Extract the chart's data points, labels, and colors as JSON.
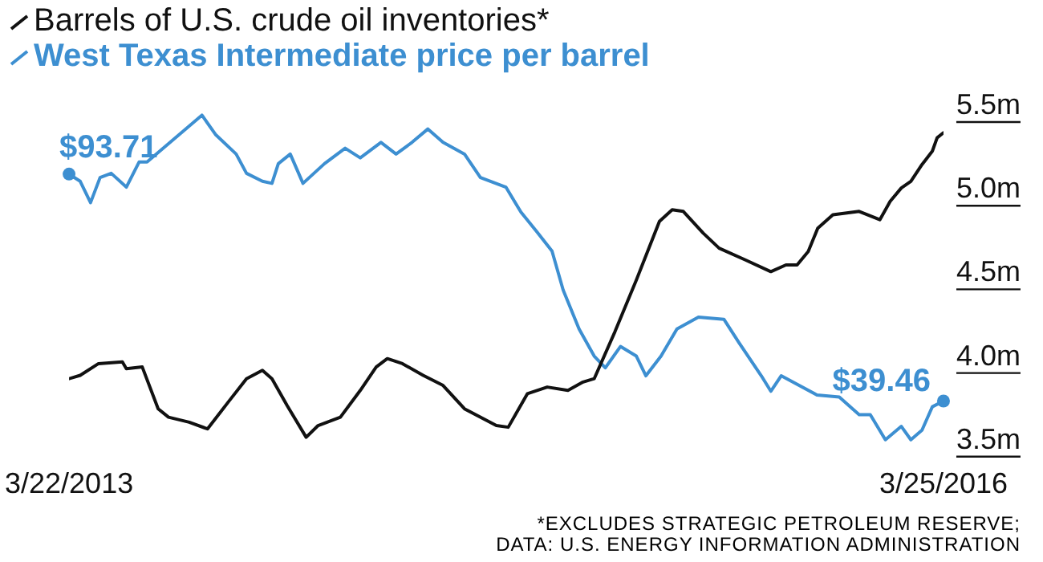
{
  "chart_data": {
    "type": "line",
    "xlim": [
      "2013-03-22",
      "2016-03-25"
    ],
    "xticks": [
      {
        "value": "2013-03-22",
        "label": "3/22/2013"
      },
      {
        "value": "2016-03-25",
        "label": "3/25/2016"
      }
    ],
    "ylim": [
      3.5,
      5.5
    ],
    "yticks": [
      {
        "value": 3.5,
        "label": "3.5m"
      },
      {
        "value": 4,
        "label": "4.0m"
      },
      {
        "value": 4.5,
        "label": "4.5m"
      },
      {
        "value": 5,
        "label": "5.0m"
      },
      {
        "value": 5.5,
        "label": "5.5m"
      }
    ],
    "grid": false,
    "legend": "top left",
    "marker": "none",
    "line_style": "solid",
    "series": [
      {
        "name": "Barrels of U.S. crude oil inventories*",
        "color": "#111111",
        "x": [
          "2013-03-22",
          "2013-04-05",
          "2013-04-28",
          "2013-05-28",
          "2013-06-02",
          "2013-06-22",
          "2013-07-12",
          "2013-07-25",
          "2013-08-20",
          "2013-09-12",
          "2013-10-08",
          "2013-10-31",
          "2013-11-20",
          "2013-12-02",
          "2013-12-21",
          "2014-01-14",
          "2014-01-29",
          "2014-02-26",
          "2014-03-23",
          "2014-04-12",
          "2014-04-26",
          "2014-05-15",
          "2014-06-10",
          "2014-07-05",
          "2014-08-01",
          "2014-09-10",
          "2014-09-25",
          "2014-10-19",
          "2014-11-13",
          "2014-12-09",
          "2014-12-28",
          "2015-01-11",
          "2015-02-06",
          "2015-03-05",
          "2015-04-03",
          "2015-04-19",
          "2015-05-03",
          "2015-05-28",
          "2015-06-17",
          "2015-07-20",
          "2015-08-21",
          "2015-09-09",
          "2015-09-23",
          "2015-10-07",
          "2015-10-19",
          "2015-11-07",
          "2015-12-10",
          "2016-01-05",
          "2016-01-18",
          "2016-02-01",
          "2016-02-13",
          "2016-02-27",
          "2016-03-11",
          "2016-03-17",
          "2016-03-25"
        ],
        "values": [
          3.87,
          3.89,
          3.96,
          3.97,
          3.93,
          3.94,
          3.69,
          3.64,
          3.61,
          3.57,
          3.73,
          3.87,
          3.92,
          3.87,
          3.71,
          3.52,
          3.59,
          3.64,
          3.8,
          3.94,
          3.99,
          3.96,
          3.89,
          3.83,
          3.69,
          3.59,
          3.58,
          3.78,
          3.82,
          3.8,
          3.85,
          3.87,
          4.15,
          4.46,
          4.81,
          4.88,
          4.87,
          4.74,
          4.65,
          4.58,
          4.51,
          4.55,
          4.55,
          4.63,
          4.77,
          4.85,
          4.87,
          4.82,
          4.93,
          5.01,
          5.05,
          5.15,
          5.23,
          5.31,
          5.34
        ]
      },
      {
        "name": "West Texas Intermediate price per barrel",
        "color": "#3d8fd1",
        "axis": "y2",
        "x": [
          "2013-03-22",
          "2013-04-05",
          "2013-04-18",
          "2013-04-30",
          "2013-05-14",
          "2013-06-02",
          "2013-06-18",
          "2013-06-28",
          "2013-09-05",
          "2013-09-22",
          "2013-10-18",
          "2013-10-31",
          "2013-11-20",
          "2013-12-02",
          "2013-12-10",
          "2013-12-25",
          "2014-01-10",
          "2014-02-06",
          "2014-03-04",
          "2014-03-23",
          "2014-04-18",
          "2014-05-07",
          "2014-05-27",
          "2014-06-16",
          "2014-07-05",
          "2014-08-01",
          "2014-08-21",
          "2014-09-22",
          "2014-10-11",
          "2014-10-31",
          "2014-11-19",
          "2014-12-03",
          "2014-12-23",
          "2015-01-11",
          "2015-01-25",
          "2015-02-13",
          "2015-03-05",
          "2015-03-17",
          "2015-04-05",
          "2015-04-25",
          "2015-05-22",
          "2015-06-23",
          "2015-07-12",
          "2015-08-09",
          "2015-08-21",
          "2015-09-03",
          "2015-10-18",
          "2015-11-15",
          "2015-12-10",
          "2015-12-24",
          "2016-01-12",
          "2016-02-01",
          "2016-02-13",
          "2016-02-27",
          "2016-03-11",
          "2016-03-25"
        ],
        "values": [
          93.71,
          92.0,
          86.9,
          92.9,
          93.9,
          90.6,
          96.6,
          96.6,
          107.8,
          103.2,
          98.5,
          93.9,
          92.0,
          91.5,
          96.2,
          98.5,
          91.5,
          96.2,
          99.9,
          97.6,
          101.3,
          98.5,
          101.3,
          104.5,
          101.3,
          98.5,
          92.9,
          90.6,
          84.6,
          79.9,
          75.3,
          66.0,
          56.7,
          50.2,
          47.4,
          52.5,
          50.2,
          45.5,
          50.2,
          56.7,
          59.5,
          59.0,
          53.4,
          45.5,
          41.8,
          45.5,
          40.9,
          40.4,
          36.2,
          36.2,
          30.2,
          33.4,
          30.2,
          32.5,
          38.1,
          39.46
        ],
        "value_labels": [
          "$93.71",
          null,
          null,
          null,
          null,
          null,
          null,
          null,
          null,
          null,
          null,
          null,
          null,
          null,
          null,
          null,
          null,
          null,
          null,
          null,
          null,
          null,
          null,
          null,
          null,
          null,
          null,
          null,
          null,
          null,
          null,
          null,
          null,
          null,
          null,
          null,
          null,
          null,
          null,
          null,
          null,
          null,
          null,
          null,
          null,
          null,
          null,
          null,
          null,
          null,
          null,
          null,
          null,
          null,
          null,
          "$39.46"
        ]
      }
    ],
    "annotations": [
      "*EXCLUDES STRATEGIC PETROLEUM RESERVE;",
      "DATA: U.S. ENERGY INFORMATION ADMINISTRATION"
    ]
  }
}
